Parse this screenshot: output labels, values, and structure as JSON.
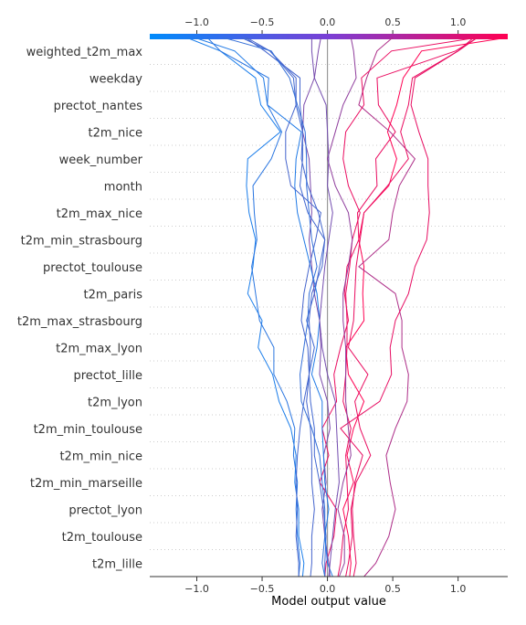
{
  "chart_data": {
    "type": "decision",
    "xlabel": "Model output value",
    "xlim": [
      -1.36,
      1.38
    ],
    "ticks": [
      "−1.0",
      "−0.5",
      "0.0",
      "0.5",
      "1.0"
    ],
    "tick_values": [
      -1.0,
      -0.5,
      0.0,
      0.5,
      1.0
    ],
    "base_value": 0.0,
    "colors": {
      "low": "#008bfb",
      "high": "#ff0052",
      "base_line": "#999999",
      "grid": "#cccccc"
    },
    "features": [
      "weighted_t2m_max",
      "weekday",
      "prectot_nantes",
      "t2m_nice",
      "week_number",
      "month",
      "t2m_max_nice",
      "t2m_min_strasbourg",
      "prectot_toulouse",
      "t2m_paris",
      "t2m_max_strasbourg",
      "t2m_max_lyon",
      "prectot_lille",
      "t2m_lyon",
      "t2m_min_toulouse",
      "t2m_min_nice",
      "t2m_min_marseille",
      "prectot_lyon",
      "t2m_toulouse",
      "t2m_lille"
    ],
    "series": [
      {
        "values": [
          -0.02,
          -0.01,
          0.05,
          0.07,
          -0.06,
          0.01,
          -0.04,
          0.07,
          0.05,
          0.1,
          0.16,
          0.13,
          0.15,
          0.24,
          0.23,
          0.38,
          0.37,
          0.52,
          0.39,
          0.38,
          0.98,
          1.15
        ]
      },
      {
        "values": [
          0.17,
          0.18,
          0.16,
          0.12,
          0.2,
          0.15,
          0.2,
          0.28,
          0.16,
          0.14,
          0.28,
          0.27,
          0.28,
          0.24,
          0.28,
          0.47,
          0.53,
          0.46,
          0.53,
          0.58,
          0.72,
          1.38
        ]
      },
      {
        "values": [
          0.28,
          0.37,
          0.47,
          0.52,
          0.48,
          0.45,
          0.52,
          0.61,
          0.62,
          0.57,
          0.57,
          0.52,
          0.24,
          0.47,
          0.5,
          0.55,
          0.67,
          0.48,
          0.24,
          0.3,
          0.38,
          0.5
        ]
      },
      {
        "values": [
          0.14,
          0.16,
          0.19,
          0.18,
          0.22,
          0.33,
          0.25,
          0.21,
          0.31,
          0.16,
          0.2,
          0.21,
          0.22,
          0.25,
          0.28,
          0.46,
          0.62,
          0.56,
          0.62,
          0.65,
          1.0,
          1.15
        ]
      },
      {
        "values": [
          0.2,
          0.22,
          0.2,
          0.19,
          0.21,
          0.27,
          0.1,
          0.4,
          0.49,
          0.48,
          0.52,
          0.62,
          0.67,
          0.76,
          0.78,
          0.77,
          0.77,
          0.7,
          0.64,
          0.67,
          1.0,
          1.12
        ]
      },
      {
        "values": [
          0.02,
          0.01,
          -0.02,
          -0.04,
          -0.01,
          -0.03,
          0.02,
          0.0,
          -0.06,
          -0.05,
          -0.06,
          -0.1,
          -0.12,
          -0.14,
          -0.12,
          -0.13,
          -0.14,
          -0.19,
          -0.18,
          -0.1,
          -0.07,
          -0.05
        ]
      },
      {
        "values": [
          -0.02,
          -0.02,
          -0.01,
          -0.03,
          -0.06,
          -0.1,
          -0.1,
          -0.13,
          -0.14,
          -0.1,
          -0.16,
          -0.1,
          -0.06,
          -0.02,
          -0.15,
          -0.21,
          -0.19,
          -0.19,
          -0.24,
          -0.26,
          -0.44,
          -0.66
        ]
      },
      {
        "values": [
          0.04,
          0.0,
          -0.02,
          0.01,
          -0.02,
          -0.03,
          -0.04,
          -0.04,
          -0.12,
          -0.08,
          -0.06,
          -0.08,
          -0.13,
          -0.18,
          -0.23,
          -0.25,
          -0.24,
          -0.2,
          -0.46,
          -0.49,
          -0.71,
          -1.02
        ]
      },
      {
        "values": [
          -0.19,
          -0.18,
          -0.22,
          -0.22,
          -0.25,
          -0.24,
          -0.28,
          -0.37,
          -0.42,
          -0.53,
          -0.5,
          -0.61,
          -0.57,
          -0.55,
          -0.6,
          -0.62,
          -0.61,
          -0.36,
          -0.51,
          -0.55,
          -0.82,
          -1.08
        ]
      },
      {
        "values": [
          -0.22,
          -0.21,
          -0.23,
          -0.24,
          -0.23,
          -0.26,
          -0.25,
          -0.31,
          -0.41,
          -0.41,
          -0.52,
          -0.55,
          -0.58,
          -0.54,
          -0.56,
          -0.57,
          -0.43,
          -0.35,
          -0.46,
          -0.45,
          -0.82,
          -0.92
        ]
      },
      {
        "values": [
          -0.13,
          -0.12,
          -0.12,
          -0.1,
          -0.12,
          -0.12,
          -0.13,
          -0.16,
          -0.14,
          -0.15,
          -0.2,
          -0.18,
          -0.14,
          -0.09,
          -0.05,
          -0.28,
          -0.32,
          -0.32,
          -0.24,
          -0.24,
          -0.44,
          -0.62
        ]
      },
      {
        "values": [
          -0.22,
          -0.22,
          -0.24,
          -0.23,
          -0.24,
          -0.23,
          -0.21,
          -0.18,
          -0.14,
          -0.13,
          -0.14,
          -0.12,
          -0.04,
          -0.02,
          -0.07,
          -0.15,
          -0.2,
          -0.19,
          -0.21,
          -0.21,
          -0.48,
          -0.63
        ]
      },
      {
        "values": [
          -0.02,
          -0.04,
          -0.02,
          -0.02,
          -0.04,
          -0.06,
          -0.12,
          -0.2,
          -0.21,
          -0.18,
          -0.15,
          -0.14,
          -0.08,
          -0.12,
          -0.14,
          -0.16,
          -0.16,
          -0.17,
          -0.23,
          -0.29,
          -0.43,
          -0.8
        ]
      },
      {
        "values": [
          0.08,
          0.1,
          0.12,
          0.16,
          0.15,
          0.14,
          0.18,
          0.12,
          0.14,
          0.15,
          0.15,
          0.14,
          0.17,
          0.19,
          0.25,
          0.16,
          0.12,
          0.14,
          0.28,
          0.26,
          0.49,
          1.15
        ]
      },
      {
        "values": [
          0.09,
          0.13,
          0.13,
          0.08,
          0.12,
          0.18,
          0.16,
          0.14,
          0.14,
          0.14,
          0.12,
          0.12,
          0.16,
          0.19,
          0.16,
          0.06,
          0.0,
          0.06,
          0.12,
          0.22,
          0.2,
          0.18
        ]
      },
      {
        "values": [
          0.01,
          0.02,
          0.04,
          0.06,
          0.09,
          0.08,
          0.07,
          0.06,
          0.0,
          -0.04,
          -0.06,
          -0.04,
          -0.02,
          0.01,
          0.04,
          0.0,
          0.01,
          0.0,
          -0.01,
          -0.1,
          -0.12,
          -0.12
        ]
      }
    ]
  }
}
